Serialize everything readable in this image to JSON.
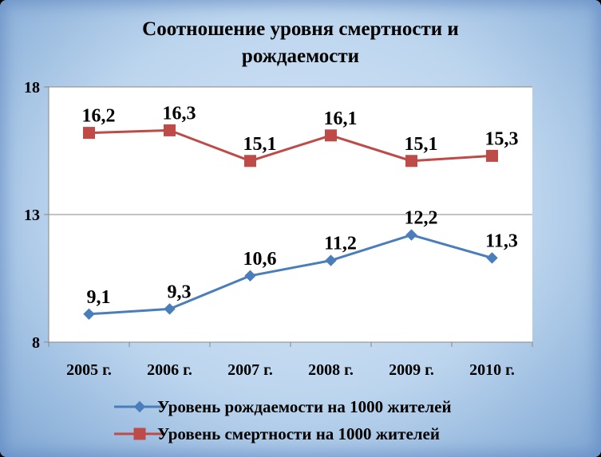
{
  "chart_data": {
    "type": "line",
    "title": "Соотношение уровня смертности и рождаемости",
    "title_lines": [
      "Соотношение уровня смертности и",
      "рождаемости"
    ],
    "categories": [
      "2005 г.",
      "2006 г.",
      "2007 г.",
      "2008 г.",
      "2009 г.",
      "2010 г."
    ],
    "ylim": [
      8,
      18
    ],
    "yticks": [
      8,
      13,
      18
    ],
    "grid": true,
    "legend_position": "bottom",
    "series": [
      {
        "name": "Уровень рождаемости на 1000 жителей",
        "values": [
          9.1,
          9.3,
          10.6,
          11.2,
          12.2,
          11.3
        ],
        "labels": [
          "9,1",
          "9,3",
          "10,6",
          "11,2",
          "12,2",
          "11,3"
        ],
        "color": "#4a7ebb",
        "marker": "diamond"
      },
      {
        "name": "Уровень смертности на 1000 жителей",
        "values": [
          16.2,
          16.3,
          15.1,
          16.1,
          15.1,
          15.3
        ],
        "labels": [
          "16,2",
          "16,3",
          "15,1",
          "16,1",
          "15,1",
          "15,3"
        ],
        "color": "#be4b48",
        "marker": "square"
      }
    ]
  }
}
